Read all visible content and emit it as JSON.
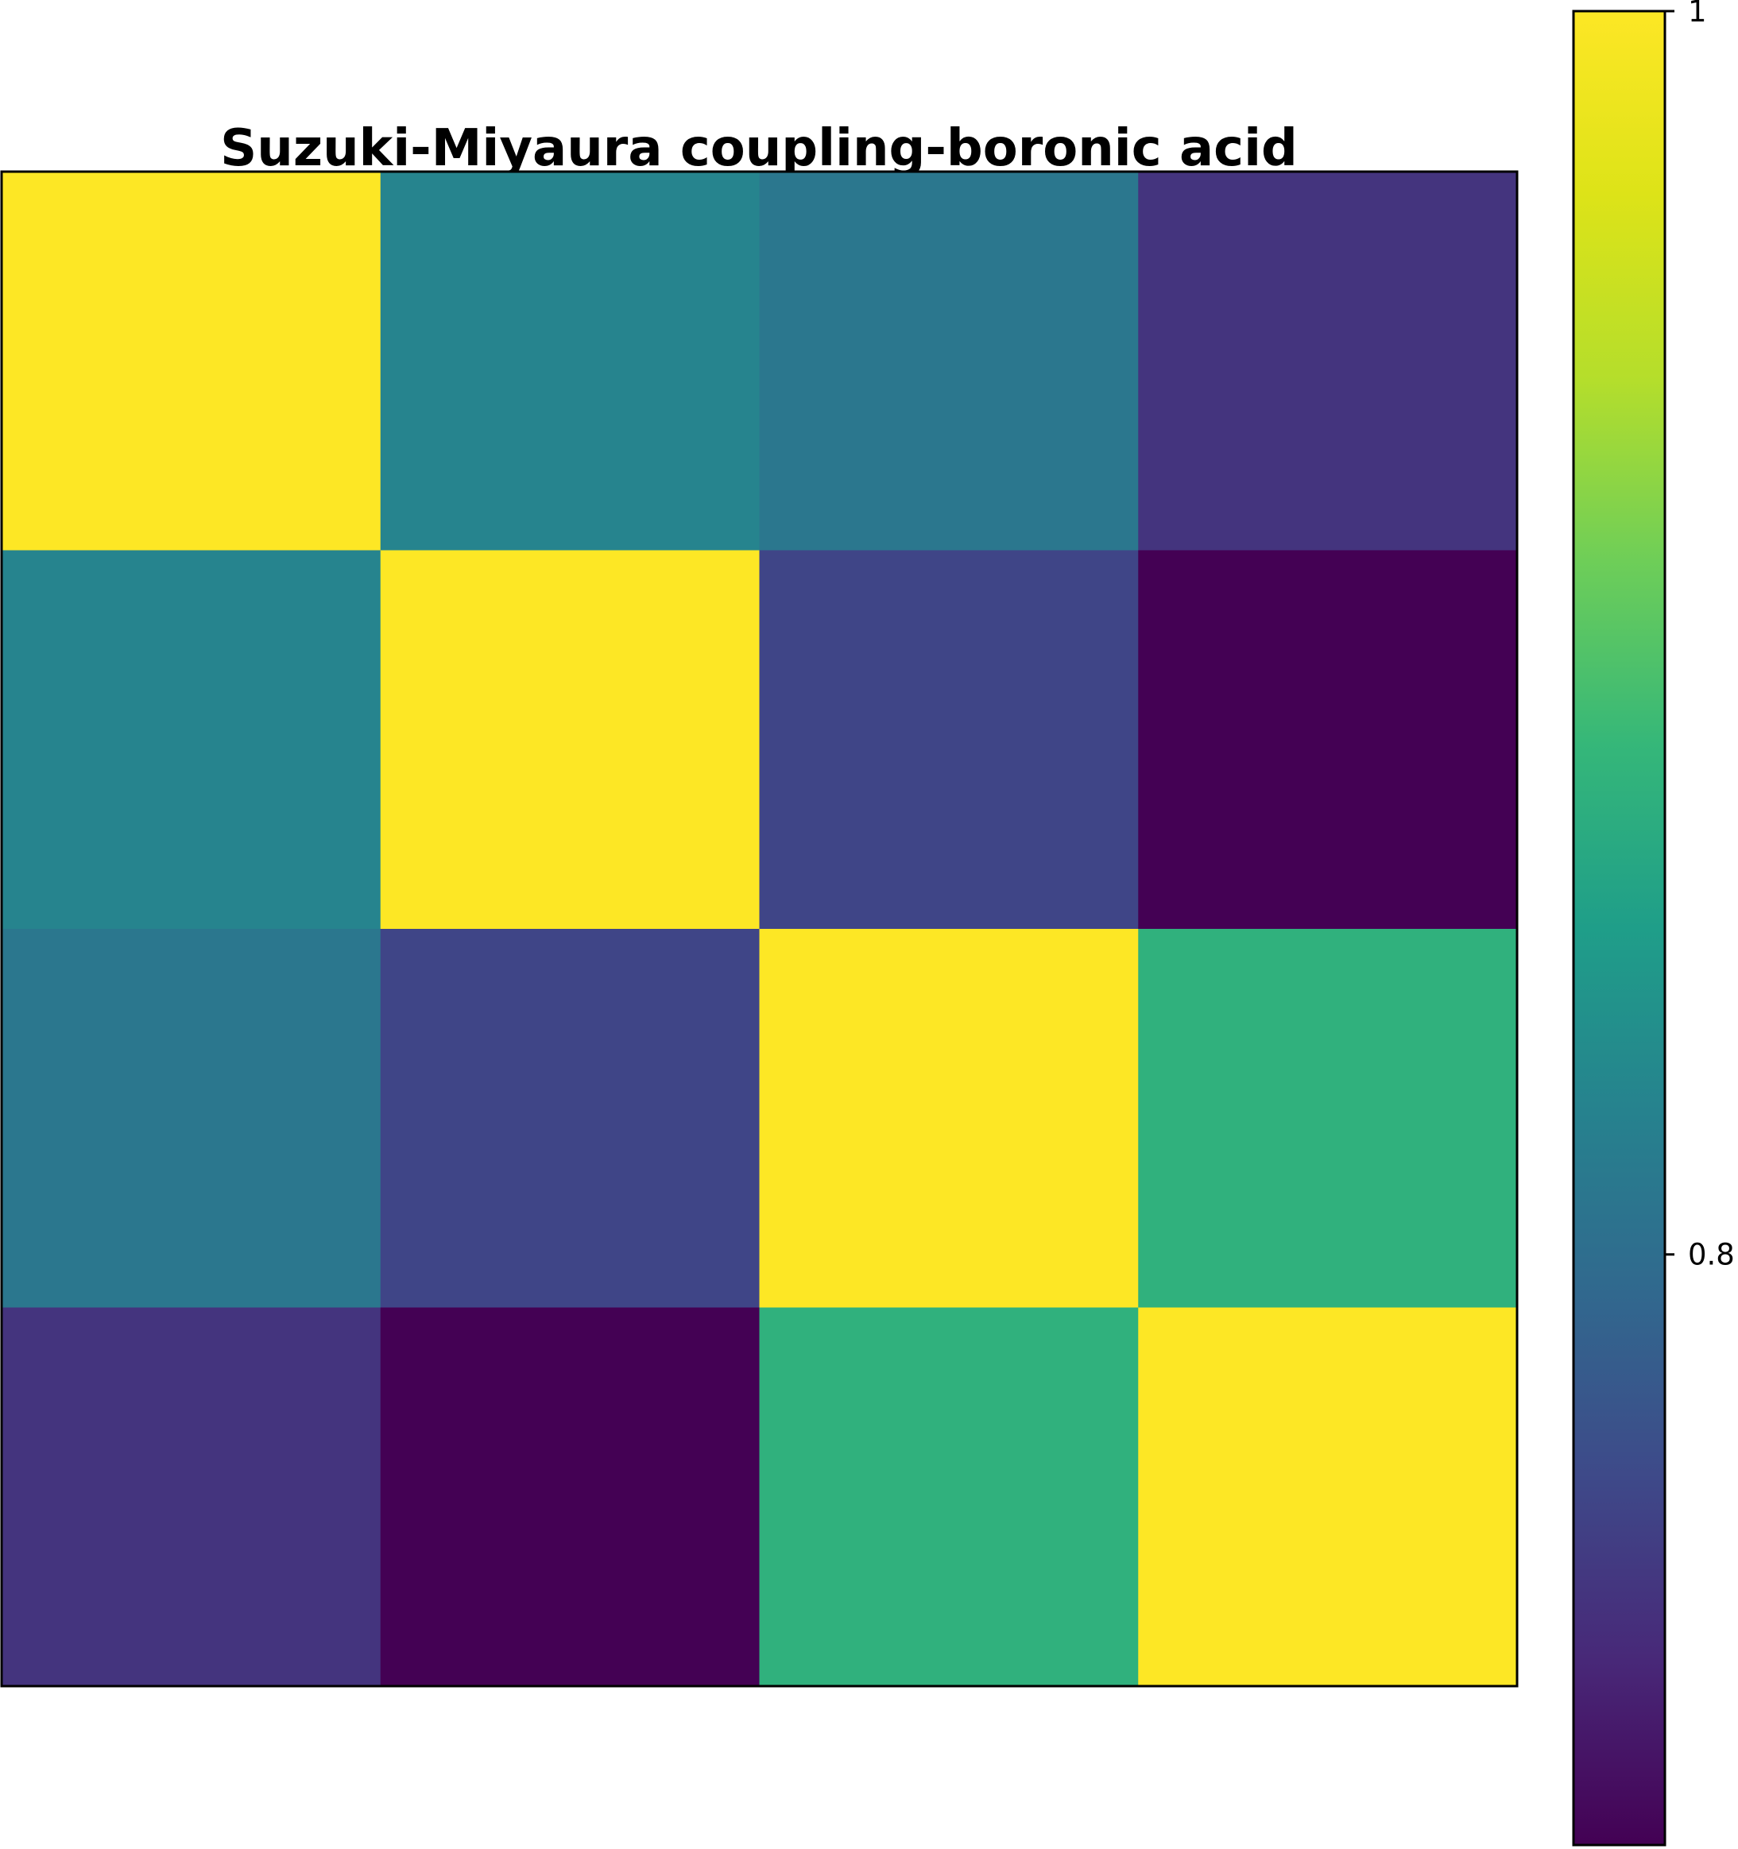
{
  "chart_data": {
    "type": "heatmap",
    "title": "Suzuki-Miyaura coupling-boronic acid",
    "rows": 4,
    "cols": 4,
    "values": [
      [
        1.0,
        0.825,
        0.81,
        0.745
      ],
      [
        0.825,
        1.0,
        0.76,
        0.705
      ],
      [
        0.81,
        0.76,
        1.0,
        0.875
      ],
      [
        0.745,
        0.705,
        0.875,
        1.0
      ]
    ],
    "colormap": "viridis",
    "colorbar": {
      "vmin": 0.705,
      "vmax": 1.0,
      "ticks": [
        {
          "value": 1.0,
          "label": "1"
        },
        {
          "value": 0.8,
          "label": "0.8"
        }
      ]
    },
    "xlabel": "",
    "ylabel": "",
    "grid": false
  }
}
